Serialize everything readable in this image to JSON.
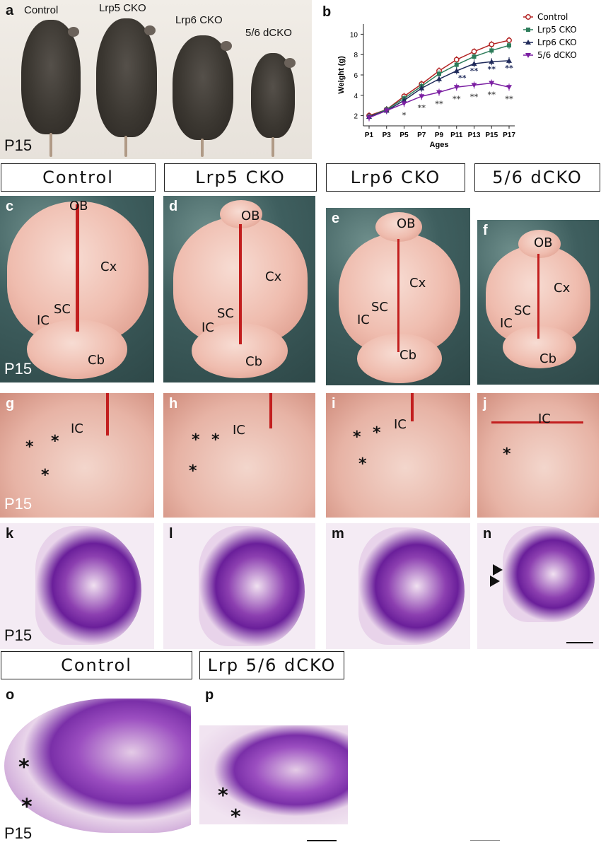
{
  "panels": {
    "a": {
      "letter": "a",
      "age": "P15",
      "mice": [
        "Control",
        "Lrp5 CKO",
        "Lrp6 CKO",
        "5/6 dCKO"
      ]
    },
    "b": {
      "letter": "b"
    },
    "headers_top": [
      "Control",
      "Lrp5 CKO",
      "Lrp6 CKO",
      "5/6 dCKO"
    ],
    "c": {
      "letter": "c",
      "age": "P15"
    },
    "d": {
      "letter": "d"
    },
    "e": {
      "letter": "e"
    },
    "f": {
      "letter": "f"
    },
    "g": {
      "letter": "g",
      "age": "P15"
    },
    "h": {
      "letter": "h"
    },
    "i": {
      "letter": "i"
    },
    "j": {
      "letter": "j"
    },
    "k": {
      "letter": "k",
      "age": "P15"
    },
    "l": {
      "letter": "l"
    },
    "m": {
      "letter": "m"
    },
    "n": {
      "letter": "n"
    },
    "headers_bottom": [
      "Control",
      "Lrp 5/6 dCKO"
    ],
    "o": {
      "letter": "o",
      "age": "P15"
    },
    "p": {
      "letter": "p"
    }
  },
  "brain_labels": {
    "ob": "OB",
    "cx": "Cx",
    "sc": "SC",
    "ic": "IC",
    "cb": "Cb"
  },
  "star": "*",
  "double_star": "**",
  "chart_data": {
    "type": "line",
    "xlabel": "Ages",
    "ylabel": "Weight (g)",
    "categories": [
      "P1",
      "P3",
      "P5",
      "P7",
      "P9",
      "P11",
      "P13",
      "P15",
      "P17"
    ],
    "ylim": [
      1,
      11
    ],
    "yticks": [
      2,
      4,
      6,
      8,
      10
    ],
    "legend_position": "right",
    "series": [
      {
        "name": "Control",
        "color": "#b22222",
        "marker": "circle",
        "values": [
          2.0,
          2.6,
          3.9,
          5.1,
          6.4,
          7.5,
          8.3,
          9.0,
          9.4
        ]
      },
      {
        "name": "Lrp5 CKO",
        "color": "#2e7d5b",
        "marker": "square",
        "values": [
          1.9,
          2.6,
          3.7,
          4.9,
          6.1,
          7.0,
          7.8,
          8.4,
          8.9
        ]
      },
      {
        "name": "Lrp6 CKO",
        "color": "#1f2a5a",
        "marker": "triangle",
        "values": [
          1.9,
          2.5,
          3.5,
          4.7,
          5.6,
          6.4,
          7.1,
          7.3,
          7.4
        ]
      },
      {
        "name": "5/6 dCKO",
        "color": "#7b1fa2",
        "marker": "triangle-down",
        "values": [
          1.8,
          2.5,
          3.2,
          3.9,
          4.3,
          4.8,
          5.0,
          5.2,
          4.8
        ]
      }
    ],
    "annotations": {
      "dCKO_blue": [
        "",
        "",
        "",
        "",
        "",
        "**",
        "**",
        "**",
        "**"
      ],
      "dCKO_purple": [
        "",
        "",
        "*",
        "**",
        "**",
        "**",
        "**",
        "**",
        "**"
      ]
    }
  }
}
